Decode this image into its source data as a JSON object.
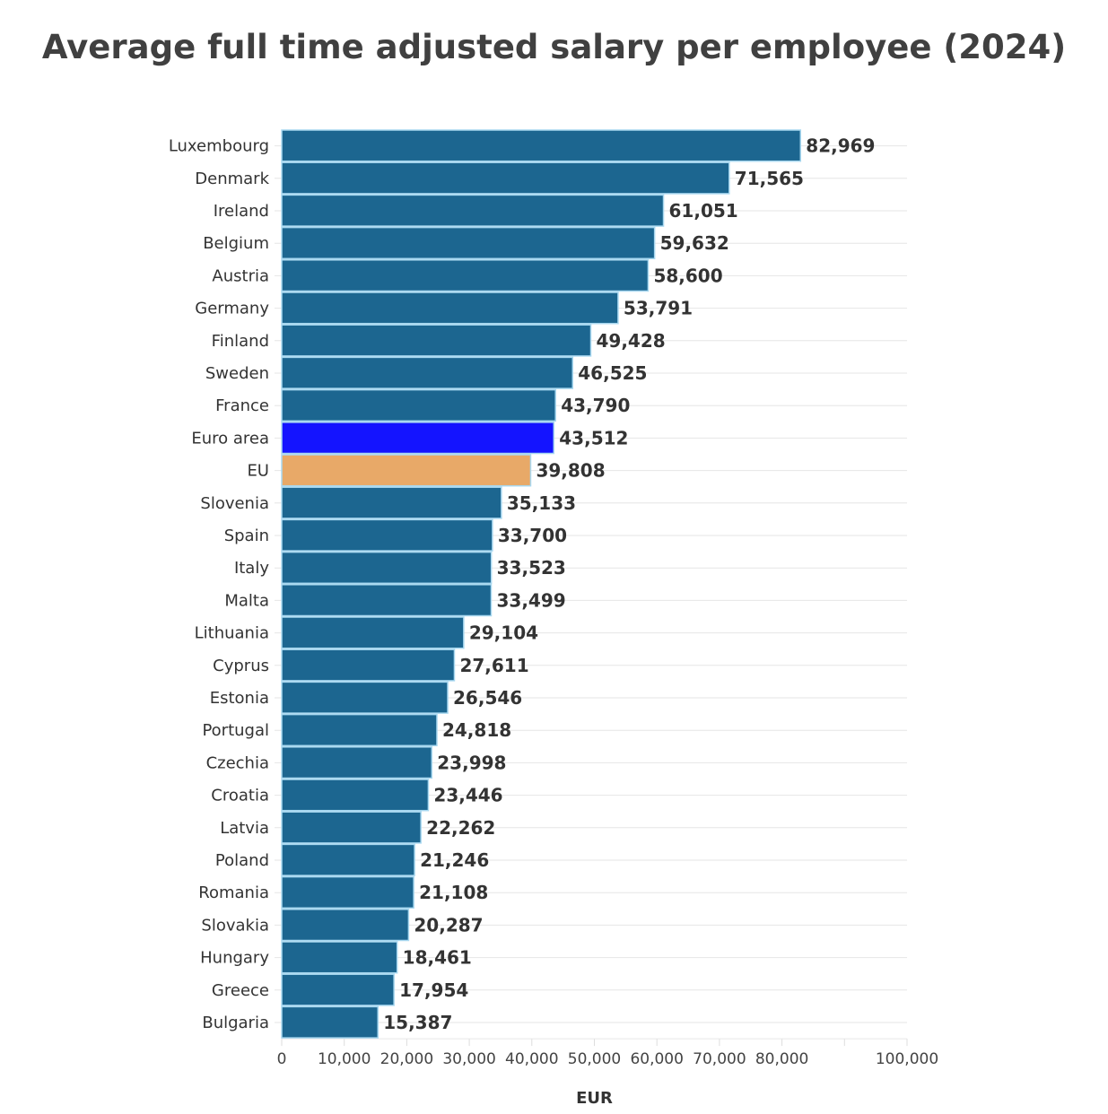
{
  "chart_data": {
    "type": "bar",
    "orientation": "horizontal",
    "title": "Average full time adjusted salary per employee (2024)",
    "xlabel": "EUR",
    "ylabel": "",
    "xlim": [
      0,
      100000
    ],
    "x_ticks": [
      0,
      10000,
      20000,
      30000,
      40000,
      50000,
      60000,
      70000,
      80000,
      90000,
      100000
    ],
    "x_tick_labels": [
      "0",
      "10,000",
      "20,000",
      "30,000",
      "40,000",
      "50,000",
      "60,000",
      "70,000",
      "80,000",
      "",
      "100,000"
    ],
    "grid": true,
    "categories": [
      "Luxembourg",
      "Denmark",
      "Ireland",
      "Belgium",
      "Austria",
      "Germany",
      "Finland",
      "Sweden",
      "France",
      "Euro area",
      "EU",
      "Slovenia",
      "Spain",
      "Italy",
      "Malta",
      "Lithuania",
      "Cyprus",
      "Estonia",
      "Portugal",
      "Czechia",
      "Croatia",
      "Latvia",
      "Poland",
      "Romania",
      "Slovakia",
      "Hungary",
      "Greece",
      "Bulgaria"
    ],
    "values": [
      82969,
      71565,
      61051,
      59632,
      58600,
      53791,
      49428,
      46525,
      43790,
      43512,
      39808,
      35133,
      33700,
      33523,
      33499,
      29104,
      27611,
      26546,
      24818,
      23998,
      23446,
      22262,
      21246,
      21108,
      20287,
      18461,
      17954,
      15387
    ],
    "value_labels": [
      "82,969",
      "71,565",
      "61,051",
      "59,632",
      "58,600",
      "53,791",
      "49,428",
      "46,525",
      "43,790",
      "43,512",
      "39,808",
      "35,133",
      "33,700",
      "33,523",
      "33,499",
      "29,104",
      "27,611",
      "26,546",
      "24,818",
      "23,998",
      "23,446",
      "22,262",
      "21,246",
      "21,108",
      "20,287",
      "18,461",
      "17,954",
      "15,387"
    ],
    "colors": {
      "default": "#1c6690",
      "Euro area": "#1414ff",
      "EU": "#e8a968",
      "bar_border": "#a8d8f0"
    }
  }
}
